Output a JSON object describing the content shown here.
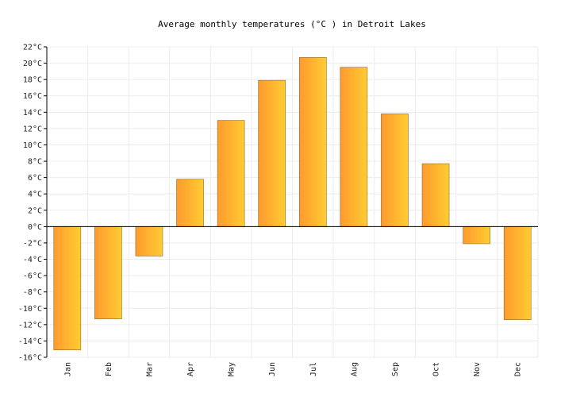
{
  "chart_data": {
    "type": "bar",
    "title": "Average monthly temperatures (°C ) in Detroit Lakes",
    "categories": [
      "Jan",
      "Feb",
      "Mar",
      "Apr",
      "May",
      "Jun",
      "Jul",
      "Aug",
      "Sep",
      "Oct",
      "Nov",
      "Dec"
    ],
    "values": [
      -15.1,
      -11.3,
      -3.6,
      5.8,
      13.0,
      17.9,
      20.7,
      19.5,
      13.8,
      7.7,
      -2.1,
      -11.4
    ],
    "ylim": [
      -16,
      22
    ],
    "ytick_step": 2,
    "ytick_suffix": "°C",
    "grid": true,
    "bar_gradient": [
      "#ff9a2e",
      "#ffcc33"
    ]
  }
}
